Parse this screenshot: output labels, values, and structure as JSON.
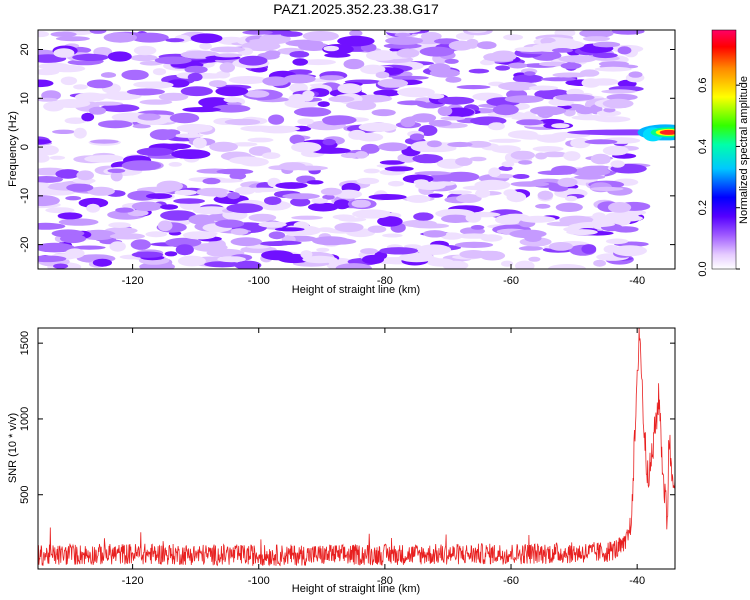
{
  "title": "PAZ1.2025.352.23.38.G17",
  "chart_data": [
    {
      "type": "heatmap",
      "xlabel": "Height of straight line (km)",
      "ylabel": "Frequency (Hz)",
      "xlim": [
        -135,
        -34
      ],
      "ylim": [
        -25,
        24
      ],
      "x_ticks": [
        -120,
        -100,
        -80,
        -60,
        -40
      ],
      "y_ticks": [
        -20,
        -10,
        0,
        10,
        20
      ],
      "x_tick_labels": [
        "-120",
        "-100",
        "-80",
        "-60",
        "-40"
      ],
      "y_tick_labels": [
        "-20",
        "-10",
        "0",
        "10",
        "20"
      ],
      "data_extent_x": [
        -135,
        -40
      ],
      "strong_signal": {
        "x_range": [
          -40,
          -34
        ],
        "frequency": 3,
        "peak_amplitude": 0.75
      },
      "colorbar": {
        "label": "Normalized spectral amplitude",
        "range": [
          0,
          0.78
        ],
        "ticks": [
          0.0,
          0.2,
          0.4,
          0.6
        ],
        "tick_labels": [
          "0.0",
          "0.2",
          "0.4",
          "0.6"
        ]
      }
    },
    {
      "type": "line",
      "xlabel": "Height of straight line (km)",
      "ylabel": "SNR (10 * v/v)",
      "xlim": [
        -135,
        -34
      ],
      "ylim": [
        10,
        1600
      ],
      "x_ticks": [
        -120,
        -100,
        -80,
        -60,
        -40
      ],
      "y_ticks": [
        500,
        1000,
        1500
      ],
      "x_tick_labels": [
        "-120",
        "-100",
        "-80",
        "-60",
        "-40"
      ],
      "y_tick_labels": [
        "500",
        "1000",
        "1500"
      ],
      "color": "#e82020",
      "x": [
        -135,
        -120,
        -100,
        -80,
        -60,
        -45,
        -42,
        -41,
        -40,
        -39.7,
        -39.5,
        -39,
        -38.5,
        -38,
        -37.5,
        -37,
        -36.5,
        -36,
        -35.5,
        -35.2,
        -35,
        -34.5
      ],
      "y": [
        100,
        110,
        100,
        105,
        110,
        120,
        160,
        300,
        1200,
        1600,
        1500,
        1000,
        700,
        650,
        800,
        1000,
        1150,
        700,
        450,
        300,
        900,
        650
      ]
    }
  ]
}
